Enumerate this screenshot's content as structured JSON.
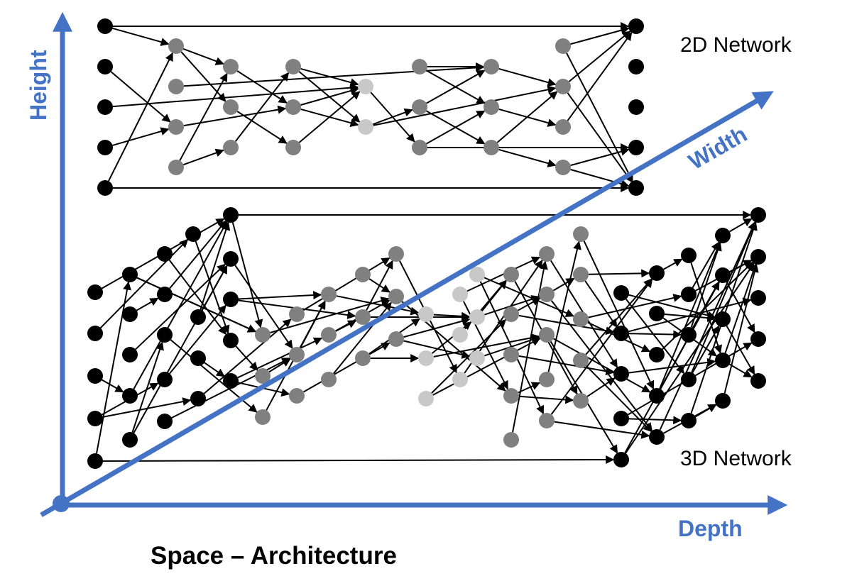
{
  "labels": {
    "network_2d": "2D Network",
    "network_3d": "3D Network",
    "height_axis": "Height",
    "width_axis": "Width",
    "depth_axis": "Depth",
    "caption": "Space – Architecture"
  }
}
